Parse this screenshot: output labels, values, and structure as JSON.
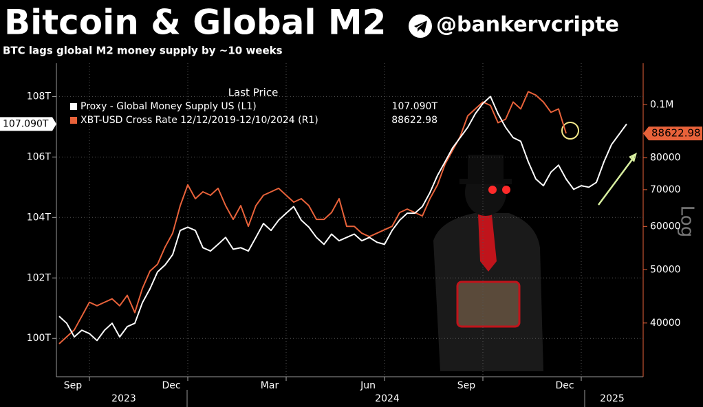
{
  "chart_data": {
    "type": "line",
    "title": "Bitcoin & Global M2",
    "handle": "@bankervcripte",
    "subtitle": "BTC lags global M2 money supply by ~10 weeks",
    "legend_header": "Last Price",
    "y2_label": "Log",
    "y2_log": true,
    "grid": true,
    "categories": [
      null,
      null,
      null,
      null,
      "Sep",
      null,
      null,
      null,
      null,
      null,
      null,
      null,
      null,
      null,
      null,
      null,
      null,
      "Dec",
      null,
      null,
      null,
      null,
      null,
      null,
      null,
      null,
      null,
      null,
      null,
      null,
      "Mar",
      null,
      null,
      null,
      null,
      null,
      null,
      null,
      null,
      null,
      null,
      null,
      null,
      "Jun",
      null,
      null,
      null,
      null,
      null,
      null,
      null,
      null,
      null,
      null,
      null,
      null,
      "Sep",
      null,
      null,
      null,
      null,
      null,
      null,
      null,
      null,
      null,
      null,
      null,
      null,
      "Dec",
      null,
      null,
      null,
      null,
      null,
      null,
      null,
      null
    ],
    "year_labels": [
      "2023",
      "2024",
      "2025"
    ],
    "ylim": [
      98.8,
      109.1
    ],
    "yticks": [
      {
        "value": 100,
        "label": "100T"
      },
      {
        "value": 102,
        "label": "102T"
      },
      {
        "value": 104,
        "label": "104T"
      },
      {
        "value": 106,
        "label": "106T"
      },
      {
        "value": 108,
        "label": "108T"
      }
    ],
    "y2lim": [
      32200,
      119000
    ],
    "y2ticks": [
      40000,
      50000,
      60000,
      70000,
      80000,
      {
        "value": 100000,
        "label": "0.1M"
      }
    ],
    "series": [
      {
        "name": "Proxy - Global Money Supply US  (L1)",
        "color": "#ffffff",
        "last_value": 107.09,
        "last_label": "107.090T",
        "values": [
          100.73,
          100.5,
          100.05,
          100.27,
          100.16,
          99.93,
          100.27,
          100.5,
          100.05,
          100.39,
          100.5,
          101.18,
          101.64,
          102.2,
          102.43,
          102.77,
          103.57,
          103.68,
          103.57,
          103.0,
          102.89,
          103.11,
          103.34,
          102.95,
          103.0,
          102.89,
          103.34,
          103.8,
          103.57,
          103.91,
          104.14,
          104.36,
          103.91,
          103.68,
          103.34,
          103.11,
          103.45,
          103.23,
          103.34,
          103.45,
          103.23,
          103.34,
          103.18,
          103.11,
          103.57,
          103.91,
          104.14,
          104.14,
          104.36,
          104.82,
          105.39,
          105.84,
          106.3,
          106.64,
          106.98,
          107.43,
          107.77,
          108.0,
          107.43,
          106.98,
          106.64,
          106.52,
          105.84,
          105.27,
          105.05,
          105.5,
          105.73,
          105.27,
          104.93,
          105.05,
          105.0,
          105.16,
          105.84,
          106.41,
          106.75,
          107.09,
          null,
          null
        ]
      },
      {
        "name": "XBT-USD Cross Rate 12/12/2019-12/10/2024   (R1)",
        "color": "#e8623a",
        "axis": "y2",
        "last_value": 88622.98,
        "values": [
          36670,
          37750,
          38860,
          41180,
          43640,
          43010,
          43640,
          44270,
          43010,
          44920,
          41780,
          46240,
          49720,
          51180,
          55020,
          58310,
          65470,
          71420,
          67400,
          69380,
          68380,
          70400,
          65470,
          61790,
          65470,
          60020,
          65470,
          68380,
          69380,
          70400,
          68380,
          66430,
          67400,
          65470,
          61790,
          61790,
          63600,
          67400,
          60020,
          60020,
          58310,
          57470,
          58310,
          59160,
          60020,
          63600,
          64530,
          63600,
          62690,
          67400,
          71420,
          77910,
          82560,
          87480,
          95440,
          98250,
          101120,
          99670,
          92710,
          94060,
          101120,
          98250,
          105620,
          104100,
          101120,
          96830,
          98250,
          88622.98,
          null,
          null,
          null,
          null,
          null,
          null,
          null,
          null,
          null,
          null
        ]
      }
    ]
  }
}
